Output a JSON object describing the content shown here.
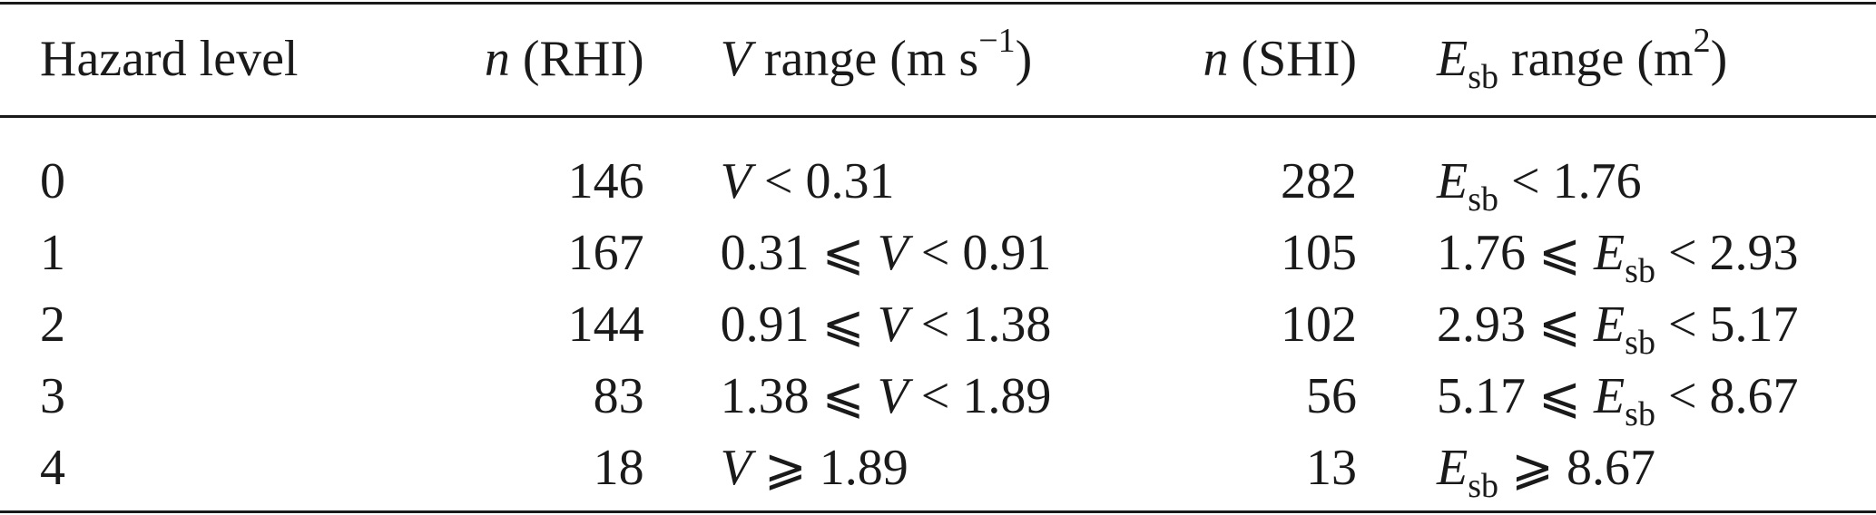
{
  "header": {
    "col1": "Hazard level",
    "col2_sym": "n",
    "col2_rest": " (RHI)",
    "col3_sym": "V",
    "col3_rest": " range (m s",
    "col3_sup": "−1",
    "col3_end": ")",
    "col4_sym": "n",
    "col4_rest": " (SHI)",
    "col5_sym": "E",
    "col5_sub": "sb",
    "col5_rest": " range (m",
    "col5_sup": "2",
    "col5_end": ")"
  },
  "rows": [
    {
      "level": "0",
      "n_rhi": "146",
      "v_a": "",
      "v_sym": "V",
      "v_b": " < 0.31",
      "n_shi": "282",
      "e_a": "",
      "e_sym": "E",
      "e_sub": "sb",
      "e_b": " < 1.76"
    },
    {
      "level": "1",
      "n_rhi": "167",
      "v_a": "0.31 ⩽ ",
      "v_sym": "V",
      "v_b": " < 0.91",
      "n_shi": "105",
      "e_a": "1.76 ⩽ ",
      "e_sym": "E",
      "e_sub": "sb",
      "e_b": " < 2.93"
    },
    {
      "level": "2",
      "n_rhi": "144",
      "v_a": "0.91 ⩽ ",
      "v_sym": "V",
      "v_b": " < 1.38",
      "n_shi": "102",
      "e_a": "2.93 ⩽ ",
      "e_sym": "E",
      "e_sub": "sb",
      "e_b": " < 5.17"
    },
    {
      "level": "3",
      "n_rhi": "83",
      "v_a": "1.38 ⩽ ",
      "v_sym": "V",
      "v_b": " < 1.89",
      "n_shi": "56",
      "e_a": "5.17 ⩽ ",
      "e_sym": "E",
      "e_sub": "sb",
      "e_b": " < 8.67"
    },
    {
      "level": "4",
      "n_rhi": "18",
      "v_a": "",
      "v_sym": "V",
      "v_b": " ⩾ 1.89",
      "n_shi": "13",
      "e_a": "",
      "e_sym": "E",
      "e_sub": "sb",
      "e_b": " ⩾ 8.67"
    }
  ]
}
